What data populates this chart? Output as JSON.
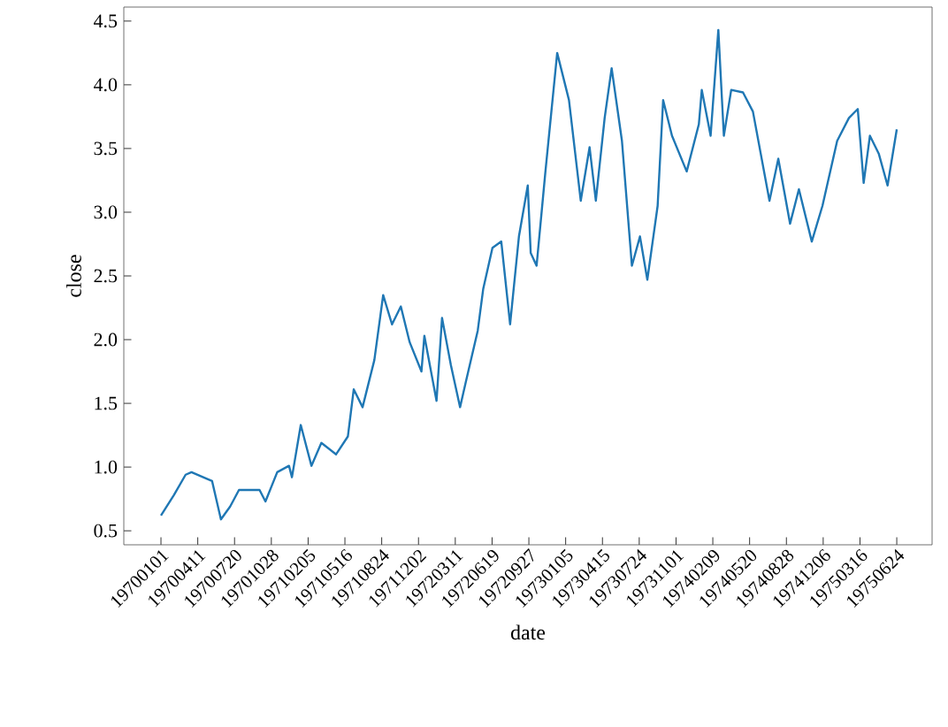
{
  "chart_data": {
    "type": "line",
    "xlabel": "date",
    "ylabel": "close",
    "xlim": [
      "1969-09-22",
      "1975-09-28"
    ],
    "ylim": [
      0.39,
      4.61
    ],
    "xticks": [
      {
        "value": "1970-01-01",
        "label": "19700101"
      },
      {
        "value": "1970-04-11",
        "label": "19700411"
      },
      {
        "value": "1970-07-20",
        "label": "19700720"
      },
      {
        "value": "1970-10-28",
        "label": "19701028"
      },
      {
        "value": "1971-02-05",
        "label": "19710205"
      },
      {
        "value": "1971-05-16",
        "label": "19710516"
      },
      {
        "value": "1971-08-24",
        "label": "19710824"
      },
      {
        "value": "1971-12-02",
        "label": "19711202"
      },
      {
        "value": "1972-03-11",
        "label": "19720311"
      },
      {
        "value": "1972-06-19",
        "label": "19720619"
      },
      {
        "value": "1972-09-27",
        "label": "19720927"
      },
      {
        "value": "1973-01-05",
        "label": "19730105"
      },
      {
        "value": "1973-04-15",
        "label": "19730415"
      },
      {
        "value": "1973-07-24",
        "label": "19730724"
      },
      {
        "value": "1973-11-01",
        "label": "19731101"
      },
      {
        "value": "1974-02-09",
        "label": "19740209"
      },
      {
        "value": "1974-05-20",
        "label": "19740520"
      },
      {
        "value": "1974-08-28",
        "label": "19740828"
      },
      {
        "value": "1974-12-06",
        "label": "19741206"
      },
      {
        "value": "1975-03-16",
        "label": "19750316"
      },
      {
        "value": "1975-06-24",
        "label": "19750624"
      }
    ],
    "yticks": [
      0.5,
      {
        "value": 1,
        "label": "1.0"
      },
      1.5,
      {
        "value": 2,
        "label": "2.0"
      },
      2.5,
      {
        "value": 3,
        "label": "3.0"
      },
      3.5,
      {
        "value": 4,
        "label": "4.0"
      },
      4.5
    ],
    "grid": false,
    "marker": "none",
    "line_style": "solid",
    "series": [
      {
        "color": "#1f77b4",
        "x": [
          "1970-01-01",
          "1970-02-05",
          "1970-03-09",
          "1970-03-25",
          "1970-04-26",
          "1970-05-20",
          "1970-06-13",
          "1970-07-08",
          "1970-08-01",
          "1970-09-26",
          "1970-10-12",
          "1970-11-13",
          "1970-12-15",
          "1970-12-23",
          "1971-01-16",
          "1971-02-14",
          "1971-03-13",
          "1971-04-22",
          "1971-05-24",
          "1971-06-09",
          "1971-07-03",
          "1971-08-04",
          "1971-08-28",
          "1971-09-21",
          "1971-10-15",
          "1971-11-08",
          "1971-12-10",
          "1971-12-18",
          "1972-01-20",
          "1972-02-04",
          "1972-02-28",
          "1972-03-24",
          "1972-04-08",
          "1972-05-11",
          "1972-05-26",
          "1972-06-20",
          "1972-07-14",
          "1972-08-07",
          "1972-08-31",
          "1972-09-24",
          "1972-10-02",
          "1972-10-18",
          "1972-11-11",
          "1972-12-13",
          "1973-01-14",
          "1973-02-15",
          "1973-03-11",
          "1973-03-28",
          "1973-04-21",
          "1973-05-10",
          "1973-06-07",
          "1973-07-04",
          "1973-07-26",
          "1973-08-15",
          "1973-09-12",
          "1973-09-27",
          "1973-10-21",
          "1973-11-30",
          "1974-01-02",
          "1974-01-10",
          "1974-02-03",
          "1974-02-24",
          "1974-03-11",
          "1974-03-31",
          "1974-05-02",
          "1974-05-29",
          "1974-07-13",
          "1974-08-06",
          "1974-09-07",
          "1974-10-01",
          "1974-11-05",
          "1974-12-04",
          "1975-01-13",
          "1975-02-14",
          "1975-03-10",
          "1975-03-26",
          "1975-04-12",
          "1975-05-06",
          "1975-05-30",
          "1975-06-24"
        ],
        "values": [
          0.62,
          0.78,
          0.94,
          0.96,
          0.92,
          0.89,
          0.59,
          0.69,
          0.82,
          0.82,
          0.73,
          0.96,
          1.01,
          0.92,
          1.33,
          1.01,
          1.19,
          1.1,
          1.24,
          1.61,
          1.47,
          1.84,
          2.35,
          2.12,
          2.26,
          1.98,
          1.75,
          2.03,
          1.52,
          2.17,
          1.8,
          1.47,
          1.66,
          2.07,
          2.4,
          2.72,
          2.77,
          2.12,
          2.81,
          3.21,
          2.68,
          2.58,
          3.32,
          4.25,
          3.88,
          3.09,
          3.51,
          3.09,
          3.74,
          4.13,
          3.56,
          2.58,
          2.81,
          2.47,
          3.05,
          3.88,
          3.6,
          3.32,
          3.69,
          3.96,
          3.6,
          4.43,
          3.6,
          3.96,
          3.94,
          3.79,
          3.09,
          3.42,
          2.91,
          3.18,
          2.77,
          3.05,
          3.56,
          3.74,
          3.81,
          3.23,
          3.6,
          3.46,
          3.21,
          3.65
        ]
      }
    ]
  }
}
